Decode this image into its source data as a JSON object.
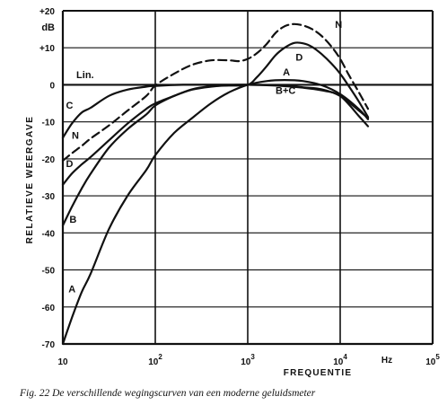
{
  "caption": "Fig. 22 De verschillende wegingscurven van een moderne geluidsmeter",
  "chart_data": {
    "type": "line",
    "title": "",
    "xlabel": "FREQUENTIE",
    "ylabel": "RELATIEVE WEERGAVE",
    "x_scale": "log",
    "xlim": [
      10,
      100000
    ],
    "ylim": [
      -70,
      20
    ],
    "grid": true,
    "y_unit_label": "dB",
    "x_unit_label": "Hz",
    "x_ticks": [
      {
        "value": 10,
        "base": "10",
        "exp": ""
      },
      {
        "value": 100,
        "base": "10",
        "exp": "2"
      },
      {
        "value": 1000,
        "base": "10",
        "exp": "3"
      },
      {
        "value": 10000,
        "base": "10",
        "exp": "4"
      },
      {
        "value": 100000,
        "base": "10",
        "exp": "5"
      }
    ],
    "y_ticks": [
      {
        "value": 20,
        "label": "+20"
      },
      {
        "value": 10,
        "label": "+10"
      },
      {
        "value": 0,
        "label": "0"
      },
      {
        "value": -10,
        "label": "-10"
      },
      {
        "value": -20,
        "label": "-20"
      },
      {
        "value": -30,
        "label": "-30"
      },
      {
        "value": -40,
        "label": "-40"
      },
      {
        "value": -50,
        "label": "-50"
      },
      {
        "value": -60,
        "label": "-60"
      },
      {
        "value": -70,
        "label": "-70"
      }
    ],
    "series": [
      {
        "name": "Lin.",
        "style": "solid",
        "label_at": {
          "x": 14,
          "y": 1.8
        },
        "points": [
          [
            50,
            0
          ],
          [
            1000,
            0
          ],
          [
            10000,
            0
          ]
        ]
      },
      {
        "name": "A",
        "style": "solid",
        "label_at": {
          "x": 11.5,
          "y": -56
        },
        "label2": "",
        "points": [
          [
            10,
            -70
          ],
          [
            12.5,
            -63
          ],
          [
            16,
            -56
          ],
          [
            20,
            -51
          ],
          [
            31.5,
            -39
          ],
          [
            50,
            -30
          ],
          [
            80,
            -23
          ],
          [
            100,
            -19
          ],
          [
            160,
            -13
          ],
          [
            250,
            -9
          ],
          [
            400,
            -5
          ],
          [
            630,
            -2
          ],
          [
            1000,
            0
          ],
          [
            1600,
            1
          ],
          [
            2500,
            1.3
          ],
          [
            4000,
            1
          ],
          [
            6300,
            -0.1
          ],
          [
            10000,
            -2.5
          ],
          [
            16000,
            -6.6
          ],
          [
            20000,
            -9.3
          ]
        ]
      },
      {
        "name": "B",
        "style": "solid",
        "label_at": {
          "x": 11.8,
          "y": -37.3
        },
        "points": [
          [
            10,
            -38
          ],
          [
            12.5,
            -33
          ],
          [
            16,
            -28
          ],
          [
            20,
            -24
          ],
          [
            31.5,
            -17
          ],
          [
            50,
            -12
          ],
          [
            80,
            -8
          ],
          [
            100,
            -5.6
          ],
          [
            160,
            -3
          ],
          [
            250,
            -1.3
          ],
          [
            400,
            -0.5
          ],
          [
            630,
            -0.1
          ],
          [
            1000,
            0
          ],
          [
            2000,
            -0.1
          ],
          [
            4000,
            -0.7
          ],
          [
            6300,
            -1.2
          ],
          [
            10000,
            -3
          ],
          [
            16000,
            -7
          ],
          [
            20000,
            -9
          ]
        ]
      },
      {
        "name": "C",
        "style": "solid",
        "label_at": {
          "x": 10.8,
          "y": -6.4
        },
        "points": [
          [
            10,
            -14.3
          ],
          [
            12.5,
            -10.5
          ],
          [
            16,
            -7.5
          ],
          [
            20,
            -6.2
          ],
          [
            31.5,
            -3
          ],
          [
            50,
            -1.3
          ],
          [
            80,
            -0.5
          ],
          [
            100,
            -0.3
          ],
          [
            200,
            0
          ],
          [
            1000,
            0
          ],
          [
            2000,
            -0.2
          ],
          [
            4000,
            -0.8
          ],
          [
            6300,
            -1.5
          ],
          [
            10000,
            -3
          ],
          [
            16000,
            -8.5
          ],
          [
            20000,
            -11.2
          ]
        ]
      },
      {
        "name": "D",
        "style": "solid",
        "label_at": {
          "x": 10.8,
          "y": -22.2
        },
        "points": [
          [
            10,
            -27
          ],
          [
            12.5,
            -24
          ],
          [
            16,
            -21.5
          ],
          [
            20,
            -19.5
          ],
          [
            31.5,
            -15
          ],
          [
            50,
            -10.5
          ],
          [
            80,
            -6.5
          ],
          [
            100,
            -5
          ],
          [
            160,
            -3
          ],
          [
            250,
            -1.2
          ],
          [
            400,
            -0.4
          ],
          [
            630,
            -0.2
          ],
          [
            1000,
            0
          ],
          [
            1250,
            2
          ],
          [
            1600,
            5
          ],
          [
            2000,
            8
          ],
          [
            2500,
            10
          ],
          [
            3150,
            11.3
          ],
          [
            4000,
            11.2
          ],
          [
            5000,
            10.2
          ],
          [
            6300,
            8.3
          ],
          [
            8000,
            5.8
          ],
          [
            10000,
            3
          ],
          [
            12500,
            -0.5
          ],
          [
            16000,
            -4.6
          ],
          [
            20000,
            -8.7
          ]
        ]
      },
      {
        "name": "N",
        "style": "dashed",
        "label_at": {
          "x": 12.5,
          "y": -14.6
        },
        "label2_at": {
          "x": 8800,
          "y": 15.4
        },
        "points": [
          [
            10,
            -20.5
          ],
          [
            12.5,
            -18.5
          ],
          [
            16,
            -16.5
          ],
          [
            20,
            -14.5
          ],
          [
            31.5,
            -11
          ],
          [
            50,
            -7
          ],
          [
            80,
            -3
          ],
          [
            100,
            -0.2
          ],
          [
            160,
            3
          ],
          [
            250,
            5.4
          ],
          [
            400,
            6.6
          ],
          [
            630,
            6.6
          ],
          [
            800,
            6.4
          ],
          [
            1000,
            7
          ],
          [
            1250,
            8.5
          ],
          [
            1600,
            11
          ],
          [
            2000,
            14
          ],
          [
            2500,
            15.8
          ],
          [
            3150,
            16.4
          ],
          [
            4000,
            16
          ],
          [
            5000,
            15
          ],
          [
            6300,
            13.2
          ],
          [
            8000,
            10.4
          ],
          [
            10000,
            7
          ],
          [
            12500,
            2.5
          ],
          [
            16000,
            -2.1
          ],
          [
            20000,
            -6.5
          ]
        ]
      }
    ],
    "annotations": [
      {
        "text": "B+C",
        "x": 2000,
        "y": -2.4
      }
    ]
  }
}
